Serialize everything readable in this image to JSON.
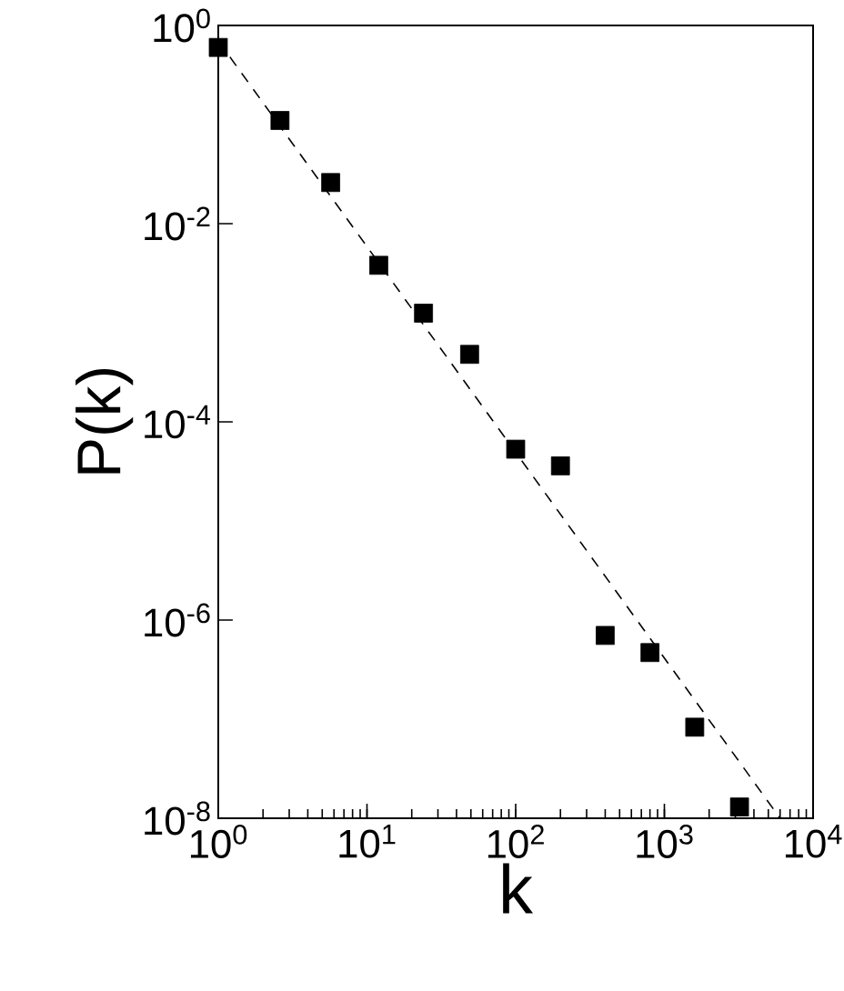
{
  "chart_data": {
    "type": "scatter",
    "xlabel": "k",
    "ylabel": "P(k)",
    "log": "xy",
    "xlim": [
      1,
      10000
    ],
    "ylim": [
      1e-08,
      1
    ],
    "xticks": [
      {
        "value": 1,
        "label": "10$^{0}$"
      },
      {
        "value": 10,
        "label": "10$^{1}$"
      },
      {
        "value": 100,
        "label": "10$^{2}$"
      },
      {
        "value": 1000,
        "label": "10$^{3}$"
      },
      {
        "value": 10000,
        "label": "10$^{4}$"
      }
    ],
    "yticks": [
      {
        "value": 1,
        "label": "10$^{0}$"
      },
      {
        "value": 0.01,
        "label": "10$^{-2}$"
      },
      {
        "value": 0.0001,
        "label": "10$^{-4}$"
      },
      {
        "value": 1e-06,
        "label": "10$^{-6}$"
      },
      {
        "value": 1e-08,
        "label": "10$^{-8}$"
      }
    ],
    "series": [
      {
        "color": "#000000",
        "marker": "square",
        "x": [
          1,
          2.6,
          5.7,
          12,
          24,
          49,
          100,
          200,
          400,
          800,
          1600,
          3200
        ],
        "values": [
          0.6,
          0.11,
          0.026,
          0.0038,
          0.00125,
          0.00048,
          5.3e-05,
          3.6e-05,
          7e-07,
          4.7e-07,
          8.3e-08,
          1.3e-08
        ]
      },
      {
        "type": "line",
        "color": "#000000",
        "marker": "none",
        "line_style": "dashed",
        "x": [
          1,
          6000
        ],
        "values": [
          0.7,
          1e-08
        ]
      }
    ]
  }
}
